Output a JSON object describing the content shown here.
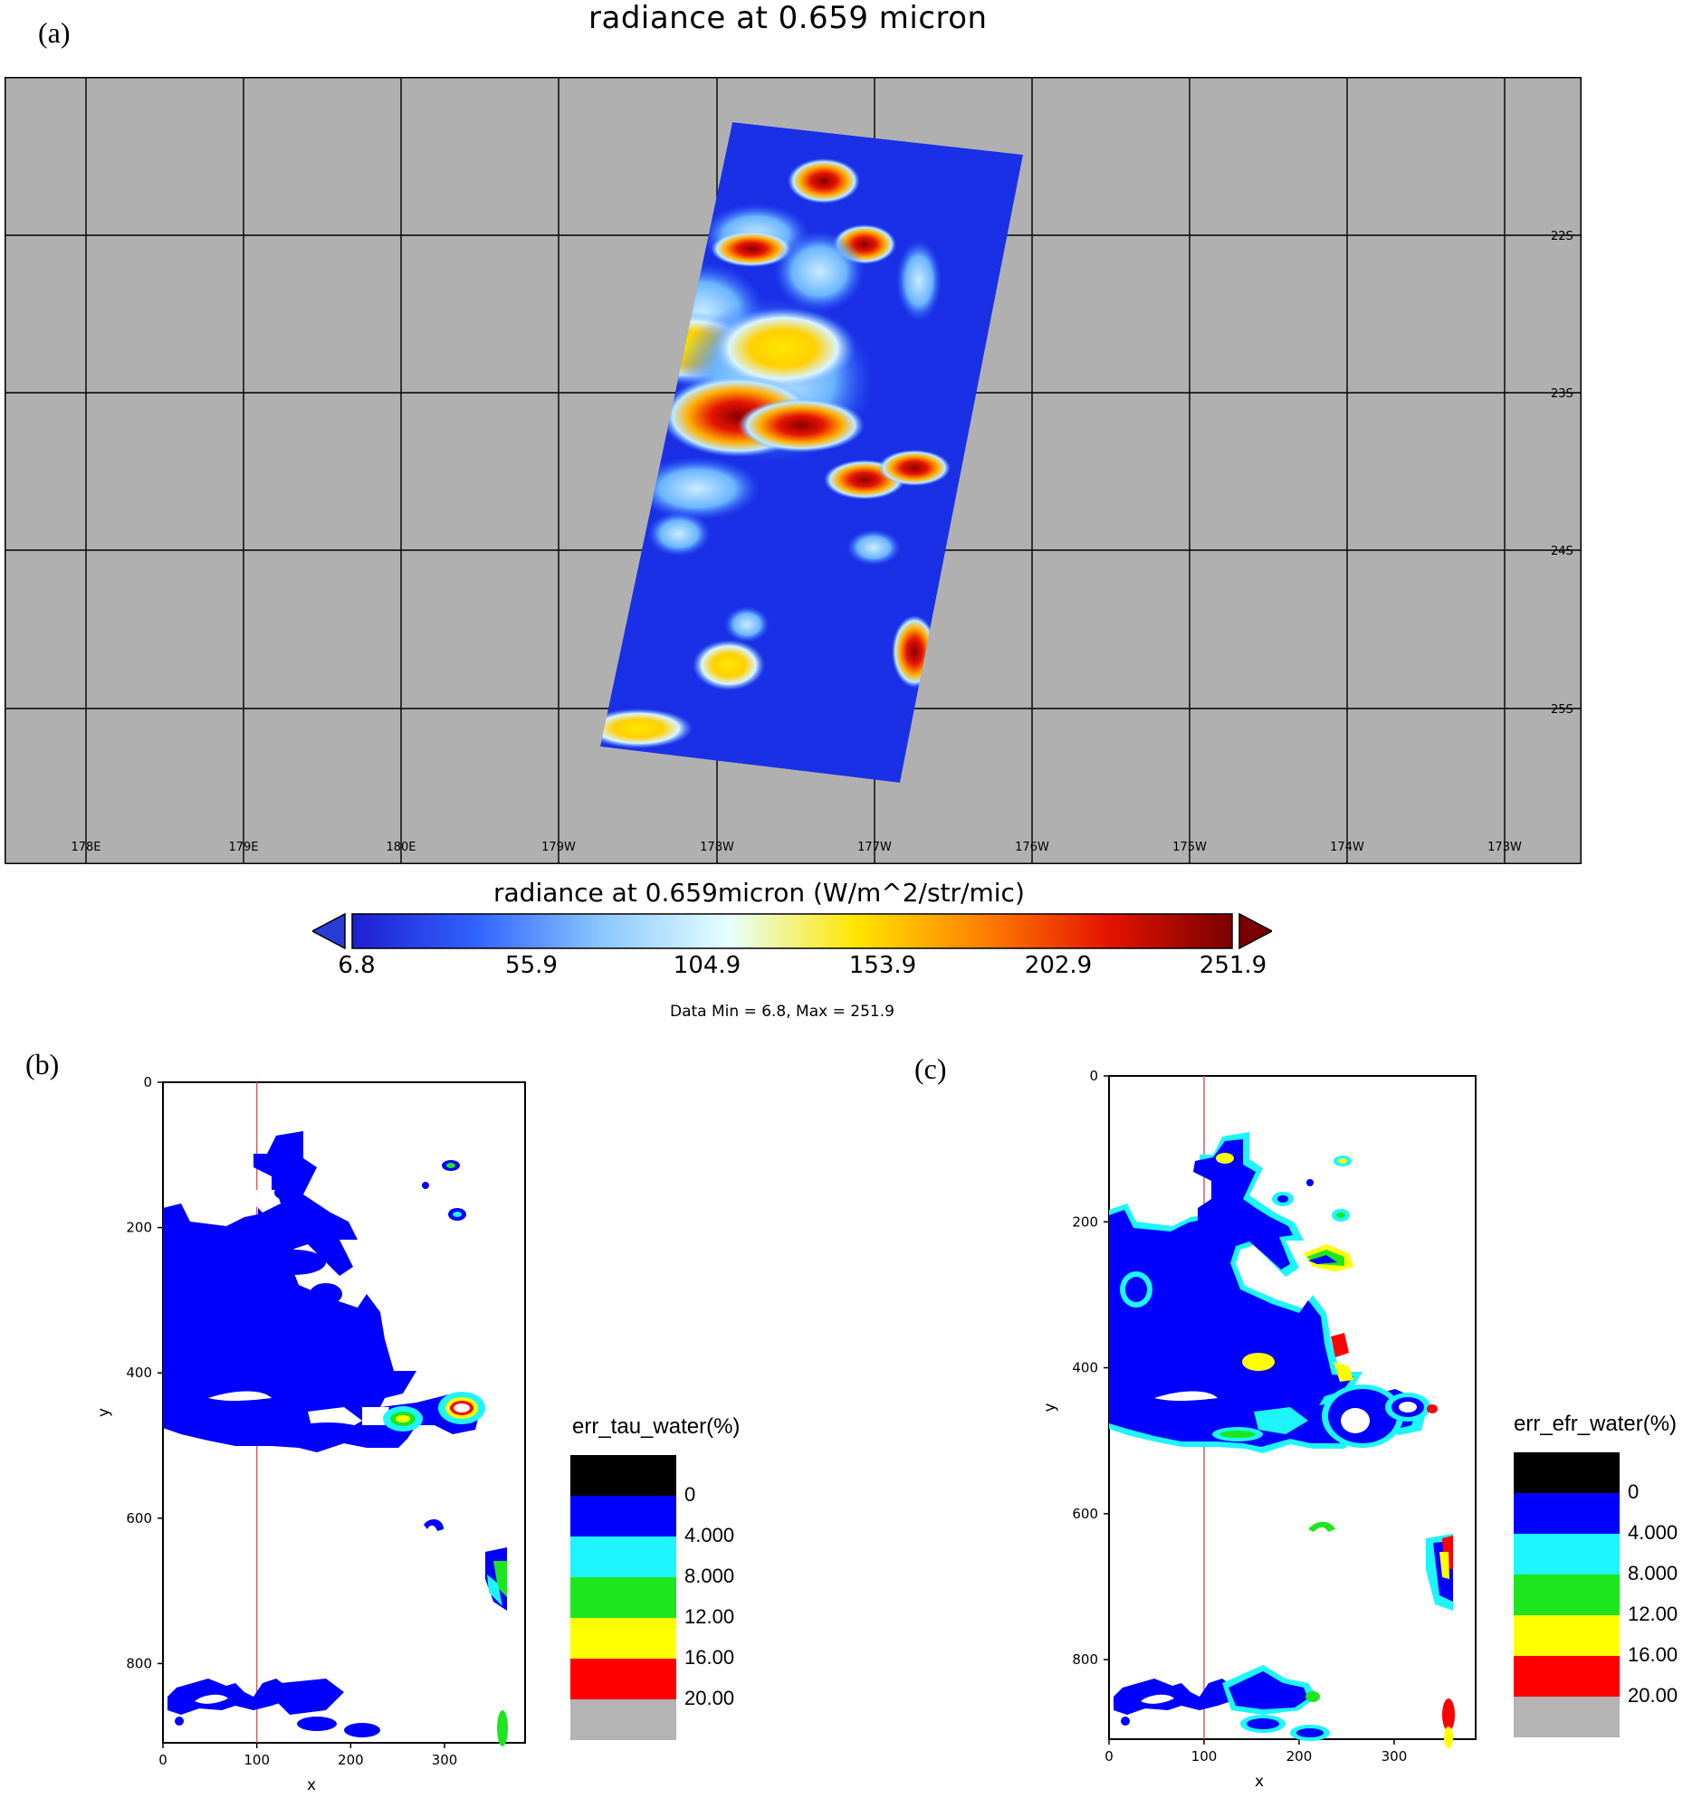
{
  "panel_a": {
    "label": "(a)",
    "title": "radiance at 0.659 micron",
    "lon_labels": [
      "178E",
      "179E",
      "180E",
      "179W",
      "178W",
      "177W",
      "176W",
      "175W",
      "174W",
      "173W"
    ],
    "lat_labels": [
      "22S",
      "23S",
      "24S",
      "25S"
    ],
    "colorbar": {
      "title": "radiance at 0.659micron (W/m^2/str/mic)",
      "ticks": [
        "6.8",
        "55.9",
        "104.9",
        "153.9",
        "202.9",
        "251.9"
      ],
      "data_min_max": "Data Min = 6.8, Max = 251.9",
      "colors": [
        "#1e1ed2",
        "#3264ff",
        "#8cc8ff",
        "#e6ffff",
        "#ffe600",
        "#ff8200",
        "#e61400",
        "#7a0000"
      ]
    },
    "background_color": "#b0b0b0"
  },
  "panel_b": {
    "label": "(b)",
    "x_label": "x",
    "y_label": "y",
    "x_ticks": [
      "0",
      "100",
      "200",
      "300"
    ],
    "y_ticks": [
      "0",
      "200",
      "400",
      "600",
      "800"
    ],
    "legend_title": "err_tau_water(%)",
    "legend_labels": [
      "0",
      "4.000",
      "8.000",
      "12.00",
      "16.00",
      "20.00"
    ]
  },
  "panel_c": {
    "label": "(c)",
    "x_label": "x",
    "y_label": "y",
    "x_ticks": [
      "0",
      "100",
      "200",
      "300"
    ],
    "y_ticks": [
      "0",
      "200",
      "400",
      "600",
      "800"
    ],
    "legend_title": "err_efr_water(%)",
    "legend_labels": [
      "0",
      "4.000",
      "8.000",
      "12.00",
      "16.00",
      "20.00"
    ]
  },
  "legend_colors": [
    "#000000",
    "#0000ff",
    "#1ef5ff",
    "#1ee61e",
    "#ffff00",
    "#ff0000",
    "#b4b4b4"
  ],
  "chart_data": [
    {
      "type": "heatmap",
      "title": "radiance at 0.659 micron",
      "colorbar_label": "radiance at 0.659micron (W/m^2/str/mic)",
      "value_range": [
        6.8,
        251.9
      ],
      "x_range_lon": [
        "178E",
        "173W"
      ],
      "y_range_lat": [
        "22S",
        "25S"
      ],
      "grid": true
    },
    {
      "type": "heatmap",
      "xlabel": "x",
      "ylabel": "y",
      "xlim": [
        0,
        380
      ],
      "ylim": [
        900,
        0
      ],
      "legend": "err_tau_water(%)",
      "levels": [
        0,
        4,
        8,
        12,
        16,
        20
      ]
    },
    {
      "type": "heatmap",
      "xlabel": "x",
      "ylabel": "y",
      "xlim": [
        0,
        380
      ],
      "ylim": [
        900,
        0
      ],
      "legend": "err_efr_water(%)",
      "levels": [
        0,
        4,
        8,
        12,
        16,
        20
      ]
    }
  ]
}
